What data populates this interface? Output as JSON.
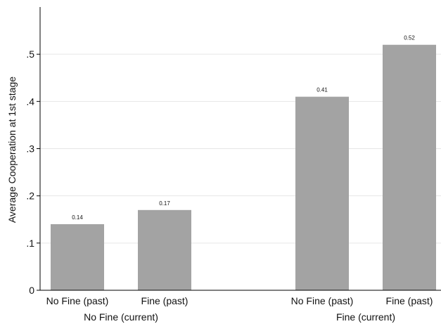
{
  "chart_data": {
    "type": "bar",
    "title": "",
    "xlabel": "",
    "ylabel": "Average Cooperation at 1st stage",
    "ylim": [
      0,
      0.6
    ],
    "yticks": [
      0,
      0.1,
      0.2,
      0.3,
      0.4,
      0.5
    ],
    "ytick_labels": [
      "0",
      ".1",
      ".2",
      ".3",
      ".4",
      ".5"
    ],
    "grid": true,
    "bar_color": "#a3a3a3",
    "groups": [
      {
        "name": "No Fine (current)",
        "bars": [
          {
            "category": "No Fine (past)",
            "value": 0.14,
            "label": "0.14"
          },
          {
            "category": "Fine (past)",
            "value": 0.17,
            "label": "0.17"
          }
        ]
      },
      {
        "name": "Fine (current)",
        "bars": [
          {
            "category": "No Fine (past)",
            "value": 0.41,
            "label": "0.41"
          },
          {
            "category": "Fine (past)",
            "value": 0.52,
            "label": "0.52"
          }
        ]
      }
    ]
  }
}
